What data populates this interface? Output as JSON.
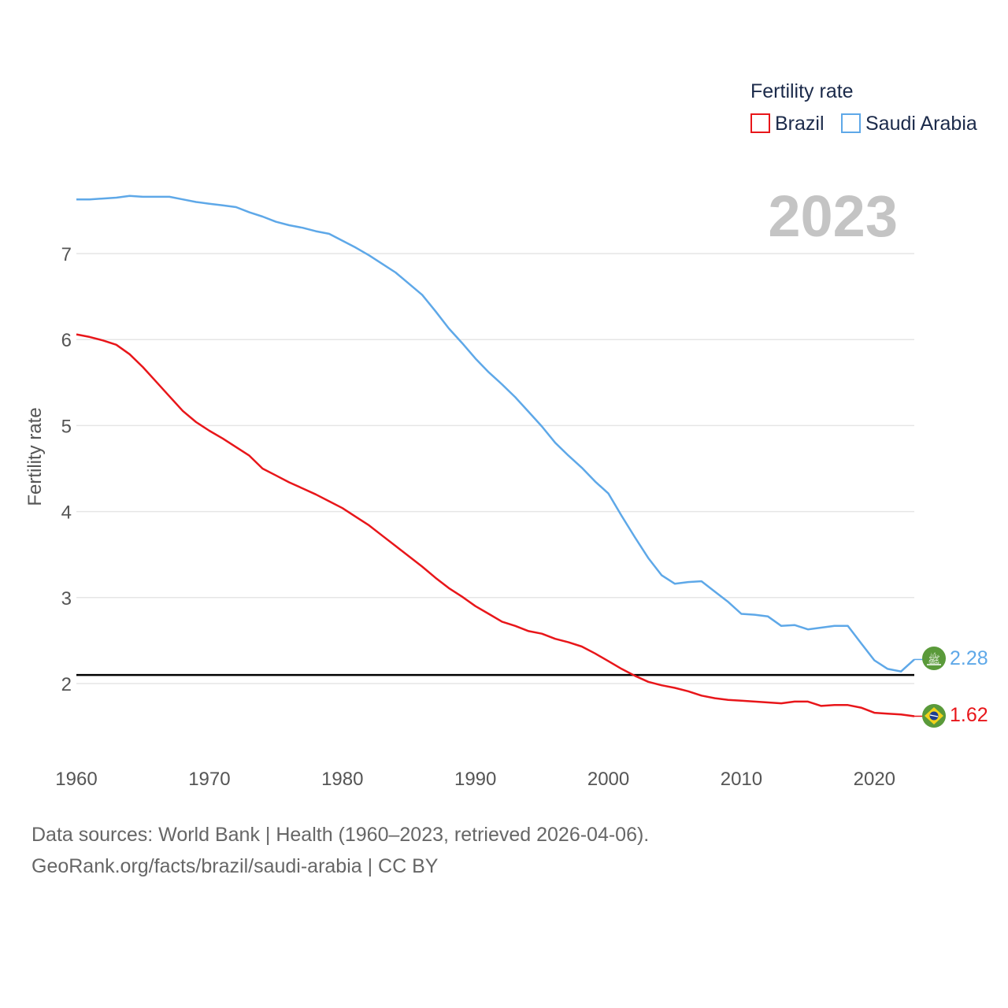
{
  "chart_data": {
    "type": "line",
    "title": "Fertility rate",
    "current_year": "2023",
    "ylabel": "Fertility rate",
    "xlabel": "",
    "xlim": [
      1960,
      2023
    ],
    "ylim": [
      1.0,
      8.0
    ],
    "x_ticks": [
      "1960",
      "1970",
      "1980",
      "1990",
      "2000",
      "2010",
      "2020"
    ],
    "y_ticks": [
      "2",
      "3",
      "4",
      "5",
      "6",
      "7"
    ],
    "reference_line": {
      "value": 2.1
    },
    "legend": {
      "title": "Fertility rate",
      "placement": "top-right"
    },
    "x": [
      1960,
      1961,
      1962,
      1963,
      1964,
      1965,
      1966,
      1967,
      1968,
      1969,
      1970,
      1971,
      1972,
      1973,
      1974,
      1975,
      1976,
      1977,
      1978,
      1979,
      1980,
      1981,
      1982,
      1983,
      1984,
      1985,
      1986,
      1987,
      1988,
      1989,
      1990,
      1991,
      1992,
      1993,
      1994,
      1995,
      1996,
      1997,
      1998,
      1999,
      2000,
      2001,
      2002,
      2003,
      2004,
      2005,
      2006,
      2007,
      2008,
      2009,
      2010,
      2011,
      2012,
      2013,
      2014,
      2015,
      2016,
      2017,
      2018,
      2019,
      2020,
      2021,
      2022,
      2023
    ],
    "series": [
      {
        "name": "Brazil",
        "color": "#e8161a",
        "end_label": "1.62",
        "flag_icon": "brazil-flag-icon",
        "values": [
          6.06,
          6.03,
          5.99,
          5.94,
          5.83,
          5.68,
          5.51,
          5.34,
          5.17,
          5.04,
          4.94,
          4.85,
          4.75,
          4.65,
          4.5,
          4.42,
          4.34,
          4.27,
          4.2,
          4.12,
          4.04,
          3.94,
          3.84,
          3.72,
          3.6,
          3.48,
          3.36,
          3.23,
          3.11,
          3.01,
          2.9,
          2.81,
          2.72,
          2.67,
          2.61,
          2.58,
          2.52,
          2.48,
          2.43,
          2.35,
          2.26,
          2.17,
          2.09,
          2.02,
          1.98,
          1.95,
          1.91,
          1.86,
          1.83,
          1.81,
          1.8,
          1.79,
          1.78,
          1.77,
          1.79,
          1.79,
          1.74,
          1.75,
          1.75,
          1.72,
          1.66,
          1.65,
          1.64,
          1.62
        ]
      },
      {
        "name": "Saudi Arabia",
        "color": "#5ea8e8",
        "end_label": "2.28",
        "flag_icon": "saudi-arabia-flag-icon",
        "values": [
          7.63,
          7.63,
          7.64,
          7.65,
          7.67,
          7.66,
          7.66,
          7.66,
          7.63,
          7.6,
          7.58,
          7.56,
          7.54,
          7.48,
          7.43,
          7.37,
          7.33,
          7.3,
          7.26,
          7.23,
          7.15,
          7.07,
          6.98,
          6.88,
          6.78,
          6.65,
          6.52,
          6.33,
          6.13,
          5.96,
          5.78,
          5.62,
          5.48,
          5.33,
          5.16,
          4.99,
          4.8,
          4.65,
          4.51,
          4.35,
          4.21,
          3.95,
          3.7,
          3.46,
          3.26,
          3.16,
          3.18,
          3.19,
          3.07,
          2.95,
          2.81,
          2.8,
          2.78,
          2.67,
          2.68,
          2.63,
          2.65,
          2.67,
          2.67,
          2.47,
          2.27,
          2.17,
          2.14,
          2.28
        ]
      }
    ]
  },
  "footer": {
    "source_line": "Data sources: World Bank | Health (1960–2023, retrieved 2026-04-06).",
    "license_line": "GeoRank.org/facts/brazil/saudi-arabia | CC BY"
  }
}
